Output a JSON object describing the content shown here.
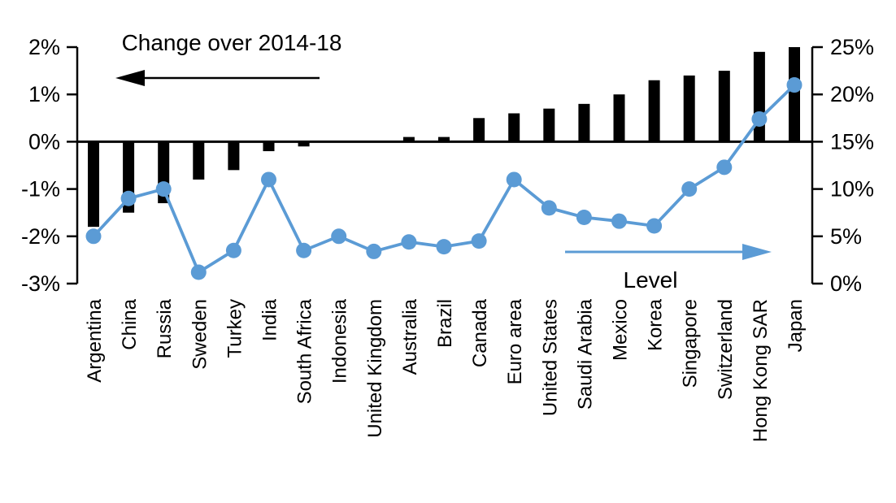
{
  "chart_data": {
    "type": "bar",
    "subtype": "dual-axis bar + line combo",
    "categories": [
      "Argentina",
      "China",
      "Russia",
      "Sweden",
      "Turkey",
      "India",
      "South Africa",
      "Indonesia",
      "United Kingdom",
      "Australia",
      "Brazil",
      "Canada",
      "Euro area",
      "United States",
      "Saudi Arabia",
      "Mexico",
      "Korea",
      "Singapore",
      "Switzerland",
      "Hong Kong SAR",
      "Japan"
    ],
    "series": [
      {
        "name": "Change over 2014-18",
        "type": "bar",
        "axis": "left",
        "color": "#000000",
        "unit": "%",
        "values": [
          -1.8,
          -1.5,
          -1.3,
          -0.8,
          -0.6,
          -0.2,
          -0.1,
          0,
          0,
          0.1,
          0.1,
          0.5,
          0.6,
          0.7,
          0.8,
          1.0,
          1.3,
          1.4,
          1.5,
          1.9,
          2.0
        ]
      },
      {
        "name": "Level",
        "type": "line",
        "axis": "right",
        "color": "#5B9BD5",
        "unit": "%",
        "values": [
          5,
          9,
          10,
          1.2,
          3.5,
          11,
          3.5,
          5,
          3.4,
          4.4,
          3.9,
          4.5,
          11,
          8,
          7,
          6.6,
          6.1,
          10,
          12.3,
          17.4,
          21
        ]
      }
    ],
    "left_axis": {
      "min": -3,
      "max": 2,
      "tick_labels": [
        "2%",
        "1%",
        "0%",
        "-1%",
        "-2%",
        "-3%"
      ]
    },
    "right_axis": {
      "min": 0,
      "max": 25,
      "tick_labels": [
        "25%",
        "20%",
        "15%",
        "10%",
        "5%",
        "0%"
      ]
    },
    "annotations": [
      {
        "text": "Change over 2014-18",
        "arrow_direction": "left",
        "color": "#000000"
      },
      {
        "text": "Level",
        "arrow_direction": "right",
        "color": "#5B9BD5"
      }
    ],
    "grid": false,
    "legend_position": "in-plot arrow annotations",
    "x_tick_label_rotation": 90
  }
}
